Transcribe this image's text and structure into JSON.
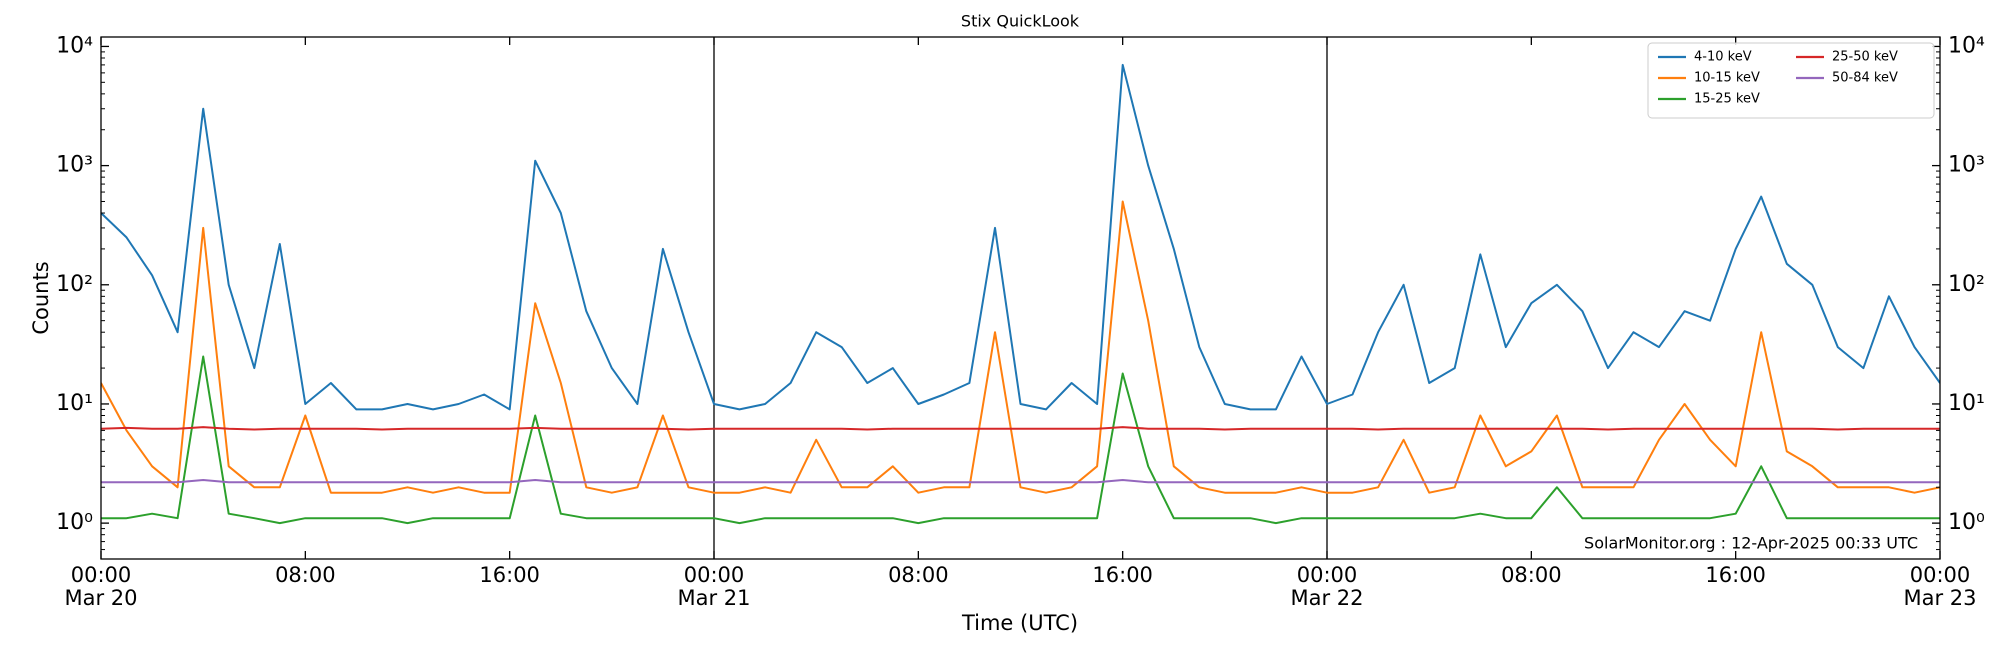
{
  "chart_data": {
    "type": "line",
    "title": "Stix QuickLook",
    "xlabel": "Time (UTC)",
    "ylabel": "Counts",
    "annotation": "SolarMonitor.org : 12-Apr-2025 00:33 UTC",
    "log_y": true,
    "legend_loc": "upper right",
    "xlim": [
      0,
      72
    ],
    "ylim": [
      0.5,
      12000
    ],
    "xticks": [
      {
        "value": 0,
        "label": "00:00",
        "date": "Mar 20"
      },
      {
        "value": 8,
        "label": "08:00"
      },
      {
        "value": 16,
        "label": "16:00"
      },
      {
        "value": 24,
        "label": "00:00",
        "date": "Mar 21"
      },
      {
        "value": 32,
        "label": "08:00"
      },
      {
        "value": 40,
        "label": "16:00"
      },
      {
        "value": 48,
        "label": "00:00",
        "date": "Mar 22"
      },
      {
        "value": 56,
        "label": "08:00"
      },
      {
        "value": 64,
        "label": "16:00"
      },
      {
        "value": 72,
        "label": "00:00",
        "date": "Mar 23"
      }
    ],
    "day_lines": [
      24,
      48
    ],
    "yticks": [
      {
        "value": 1,
        "label": "10⁰"
      },
      {
        "value": 10,
        "label": "10¹"
      },
      {
        "value": 100,
        "label": "10²"
      },
      {
        "value": 1000,
        "label": "10³"
      },
      {
        "value": 10000,
        "label": "10⁴"
      }
    ],
    "x": [
      0,
      1,
      2,
      3,
      4,
      5,
      6,
      7,
      8,
      9,
      10,
      11,
      12,
      13,
      14,
      15,
      16,
      17,
      18,
      19,
      20,
      21,
      22,
      23,
      24,
      25,
      26,
      27,
      28,
      29,
      30,
      31,
      32,
      33,
      34,
      35,
      36,
      37,
      38,
      39,
      40,
      41,
      42,
      43,
      44,
      45,
      46,
      47,
      48,
      49,
      50,
      51,
      52,
      53,
      54,
      55,
      56,
      57,
      58,
      59,
      60,
      61,
      62,
      63,
      64,
      65,
      66,
      67,
      68,
      69,
      70,
      71,
      72
    ],
    "series": [
      {
        "name": "4-10 keV",
        "color": "#1f77b4",
        "values": [
          400,
          250,
          120,
          40,
          3000,
          100,
          20,
          220,
          10,
          15,
          9,
          9,
          10,
          9,
          10,
          12,
          9,
          1100,
          400,
          60,
          20,
          10,
          200,
          40,
          10,
          9,
          10,
          15,
          40,
          30,
          15,
          20,
          10,
          12,
          15,
          300,
          10,
          9,
          15,
          10,
          7000,
          1000,
          200,
          30,
          10,
          9,
          9,
          25,
          10,
          12,
          40,
          100,
          15,
          20,
          180,
          30,
          70,
          100,
          60,
          20,
          40,
          30,
          60,
          50,
          200,
          550,
          150,
          100,
          30,
          20,
          80,
          30,
          15
        ]
      },
      {
        "name": "10-15 keV",
        "color": "#ff7f0e",
        "values": [
          15,
          6,
          3,
          2,
          300,
          3,
          2,
          2,
          8,
          1.8,
          1.8,
          1.8,
          2,
          1.8,
          2,
          1.8,
          1.8,
          70,
          15,
          2,
          1.8,
          2,
          8,
          2,
          1.8,
          1.8,
          2,
          1.8,
          5,
          2,
          2,
          3,
          1.8,
          2,
          2,
          40,
          2,
          1.8,
          2,
          3,
          500,
          50,
          3,
          2,
          1.8,
          1.8,
          1.8,
          2,
          1.8,
          1.8,
          2,
          5,
          1.8,
          2,
          8,
          3,
          4,
          8,
          2,
          2,
          2,
          5,
          10,
          5,
          3,
          40,
          4,
          3,
          2,
          2,
          2,
          1.8,
          2
        ]
      },
      {
        "name": "15-25 keV",
        "color": "#2ca02c",
        "values": [
          1.1,
          1.1,
          1.2,
          1.1,
          25,
          1.2,
          1.1,
          1.0,
          1.1,
          1.1,
          1.1,
          1.1,
          1.0,
          1.1,
          1.1,
          1.1,
          1.1,
          8,
          1.2,
          1.1,
          1.1,
          1.1,
          1.1,
          1.1,
          1.1,
          1.0,
          1.1,
          1.1,
          1.1,
          1.1,
          1.1,
          1.1,
          1.0,
          1.1,
          1.1,
          1.1,
          1.1,
          1.1,
          1.1,
          1.1,
          18,
          3,
          1.1,
          1.1,
          1.1,
          1.1,
          1.0,
          1.1,
          1.1,
          1.1,
          1.1,
          1.1,
          1.1,
          1.1,
          1.2,
          1.1,
          1.1,
          2,
          1.1,
          1.1,
          1.1,
          1.1,
          1.1,
          1.1,
          1.2,
          3,
          1.1,
          1.1,
          1.1,
          1.1,
          1.1,
          1.1,
          1.1
        ]
      },
      {
        "name": "25-50 keV",
        "color": "#d62728",
        "values": [
          6.2,
          6.3,
          6.2,
          6.2,
          6.4,
          6.2,
          6.1,
          6.2,
          6.2,
          6.2,
          6.2,
          6.1,
          6.2,
          6.2,
          6.2,
          6.2,
          6.2,
          6.3,
          6.2,
          6.2,
          6.2,
          6.2,
          6.2,
          6.1,
          6.2,
          6.2,
          6.2,
          6.2,
          6.2,
          6.2,
          6.1,
          6.2,
          6.2,
          6.2,
          6.2,
          6.2,
          6.2,
          6.2,
          6.2,
          6.2,
          6.4,
          6.2,
          6.2,
          6.2,
          6.1,
          6.2,
          6.2,
          6.2,
          6.2,
          6.2,
          6.1,
          6.2,
          6.2,
          6.2,
          6.2,
          6.2,
          6.2,
          6.2,
          6.2,
          6.1,
          6.2,
          6.2,
          6.2,
          6.2,
          6.2,
          6.2,
          6.2,
          6.2,
          6.1,
          6.2,
          6.2,
          6.2,
          6.2
        ]
      },
      {
        "name": "50-84 keV",
        "color": "#9467bd",
        "values": [
          2.2,
          2.2,
          2.2,
          2.2,
          2.3,
          2.2,
          2.2,
          2.2,
          2.2,
          2.2,
          2.2,
          2.2,
          2.2,
          2.2,
          2.2,
          2.2,
          2.2,
          2.3,
          2.2,
          2.2,
          2.2,
          2.2,
          2.2,
          2.2,
          2.2,
          2.2,
          2.2,
          2.2,
          2.2,
          2.2,
          2.2,
          2.2,
          2.2,
          2.2,
          2.2,
          2.2,
          2.2,
          2.2,
          2.2,
          2.2,
          2.3,
          2.2,
          2.2,
          2.2,
          2.2,
          2.2,
          2.2,
          2.2,
          2.2,
          2.2,
          2.2,
          2.2,
          2.2,
          2.2,
          2.2,
          2.2,
          2.2,
          2.2,
          2.2,
          2.2,
          2.2,
          2.2,
          2.2,
          2.2,
          2.2,
          2.2,
          2.2,
          2.2,
          2.2,
          2.2,
          2.2,
          2.2,
          2.2
        ]
      }
    ]
  }
}
